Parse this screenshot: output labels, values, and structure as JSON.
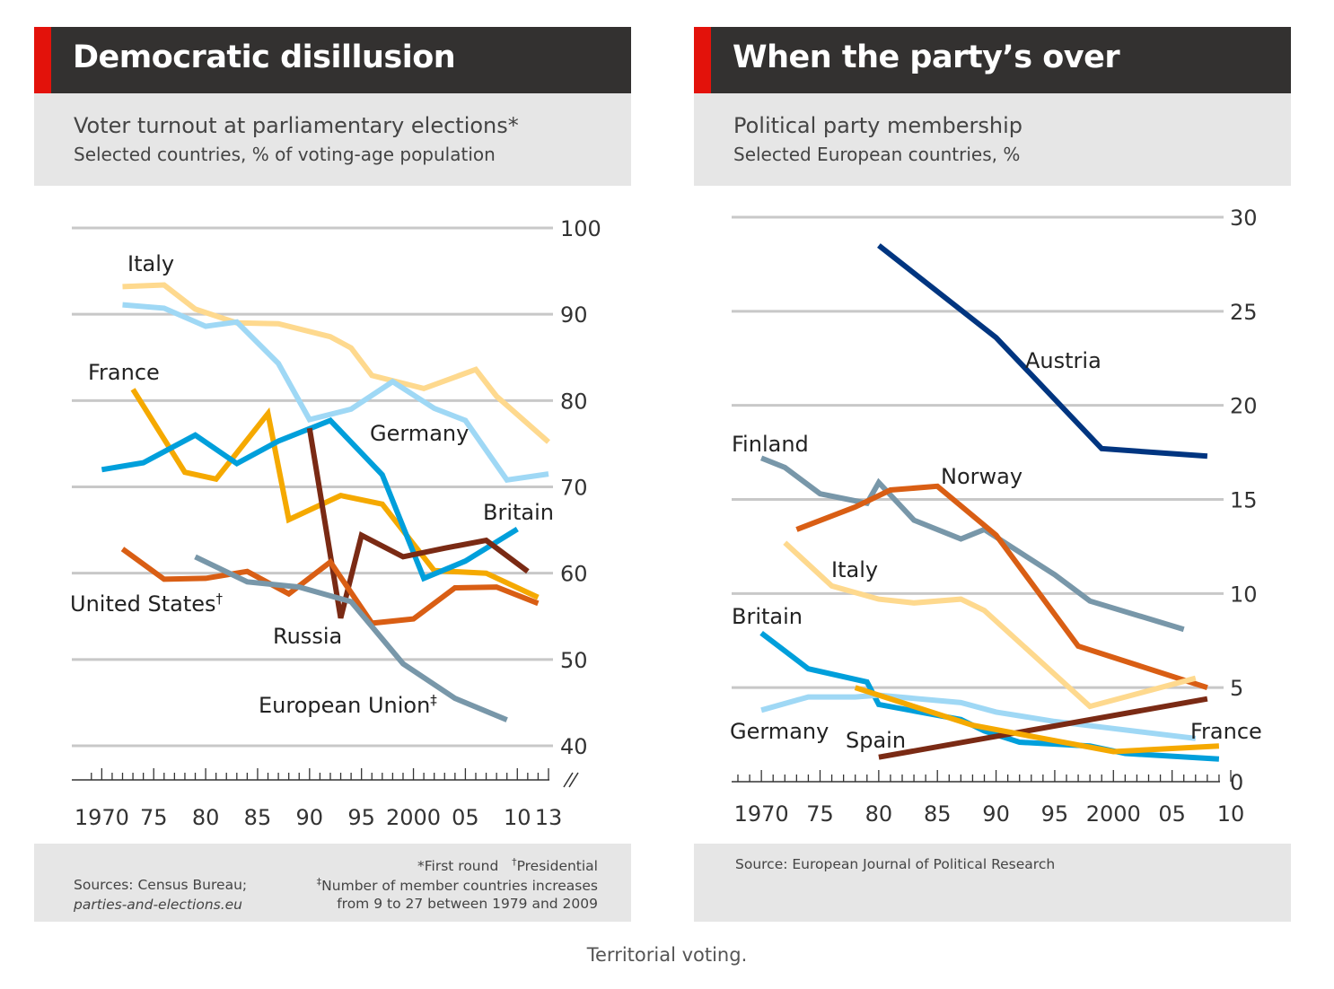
{
  "caption": "Territorial voting.",
  "charts": {
    "left": {
      "title": "Democratic disillusion",
      "subtitle": "Voter turnout at parliamentary elections*",
      "subtitle2": "Selected countries, % of voting-age population",
      "footer": {
        "sources_prefix": "Sources: Census Bureau;",
        "sources_link": "parties-and-elections.eu",
        "note1": "*First round",
        "note2_mark": "†",
        "note2": "Presidential",
        "note3_mark": "‡",
        "note3": "Number of member countries increases",
        "note4": "from 9 to 27 between 1979 and 2009"
      }
    },
    "right": {
      "title": "When the party’s over",
      "subtitle": "Political party membership",
      "subtitle2": "Selected European countries, %",
      "footer": {
        "sources": "Source: European Journal of Political Research"
      }
    }
  },
  "chart_data": [
    {
      "type": "line",
      "title": "Democratic disillusion",
      "subtitle": "Voter turnout at parliamentary elections* — Selected countries, % of voting-age population",
      "ylim": [
        40,
        100
      ],
      "yticks": [
        40,
        50,
        60,
        70,
        80,
        90,
        100
      ],
      "y_axis_side": "right",
      "y_axis_break": true,
      "xlim": [
        1968.5,
        2013
      ],
      "xtick_values": [
        1970,
        1975,
        1980,
        1985,
        1990,
        1995,
        2000,
        2005,
        2010,
        2013
      ],
      "xtick_labels": [
        "1970",
        "75",
        "80",
        "85",
        "90",
        "95",
        "2000",
        "05",
        "10",
        "13"
      ],
      "grid": true,
      "legend": "direct labels",
      "series": [
        {
          "name": "Italy",
          "color": "#fed98e",
          "x": [
            1972,
            1976,
            1979,
            1983,
            1987,
            1992,
            1994,
            1996,
            2001,
            2006,
            2008,
            2013
          ],
          "y": [
            93.2,
            93.4,
            90.6,
            89.0,
            88.9,
            87.4,
            86.1,
            82.9,
            81.4,
            83.6,
            80.5,
            75.2
          ]
        },
        {
          "name": "Germany",
          "color": "#9fd8f5",
          "x": [
            1972,
            1976,
            1980,
            1983,
            1987,
            1990,
            1994,
            1998,
            2002,
            2005,
            2009,
            2013
          ],
          "y": [
            91.1,
            90.7,
            88.6,
            89.1,
            84.3,
            77.8,
            79.0,
            82.2,
            79.1,
            77.7,
            70.8,
            71.5
          ]
        },
        {
          "name": "France",
          "color": "#f5a900",
          "x": [
            1973,
            1978,
            1981,
            1986,
            1988,
            1993,
            1997,
            2002,
            2007,
            2012
          ],
          "y": [
            81.3,
            71.7,
            70.9,
            78.5,
            66.2,
            69.0,
            68.0,
            60.3,
            60.0,
            57.2
          ]
        },
        {
          "name": "Britain",
          "color": "#009fdb",
          "x": [
            1970,
            1974,
            1979,
            1983,
            1987,
            1992,
            1997,
            2001,
            2005,
            2010
          ],
          "y": [
            72.0,
            72.8,
            76.0,
            72.7,
            75.3,
            77.7,
            71.4,
            59.4,
            61.4,
            65.1
          ]
        },
        {
          "name": "Russia",
          "color": "#7a2a14",
          "x": [
            1990,
            1993,
            1995,
            1999,
            2003,
            2007,
            2011
          ],
          "y": [
            76.8,
            54.8,
            64.4,
            61.9,
            62.9,
            63.8,
            60.2
          ]
        },
        {
          "name": "United States†",
          "color": "#d95e14",
          "x": [
            1972,
            1976,
            1980,
            1984,
            1988,
            1992,
            1996,
            2000,
            2004,
            2008,
            2012
          ],
          "y": [
            62.8,
            59.3,
            59.4,
            60.2,
            57.6,
            61.3,
            54.2,
            54.7,
            58.3,
            58.4,
            56.5
          ]
        },
        {
          "name": "European Union‡",
          "color": "#7897a9",
          "x": [
            1979,
            1984,
            1989,
            1994,
            1999,
            2004,
            2009
          ],
          "y": [
            61.9,
            59.0,
            58.4,
            56.7,
            49.5,
            45.5,
            43.0
          ]
        }
      ]
    },
    {
      "type": "line",
      "title": "When the party’s over",
      "subtitle": "Political party membership — Selected European countries, %",
      "ylim": [
        0,
        30
      ],
      "yticks": [
        0,
        5,
        10,
        15,
        20,
        25,
        30
      ],
      "y_axis_side": "right",
      "xlim": [
        1968,
        2010
      ],
      "xtick_values": [
        1970,
        1975,
        1980,
        1985,
        1990,
        1995,
        2000,
        2005,
        2010
      ],
      "xtick_labels": [
        "1970",
        "75",
        "80",
        "85",
        "90",
        "95",
        "2000",
        "05",
        "10"
      ],
      "grid": true,
      "legend": "direct labels",
      "series": [
        {
          "name": "Austria",
          "color": "#003580",
          "x": [
            1980,
            1990,
            1999,
            2008
          ],
          "y": [
            28.5,
            23.6,
            17.7,
            17.3
          ]
        },
        {
          "name": "Finland",
          "color": "#7897a9",
          "x": [
            1970,
            1972,
            1975,
            1979,
            1980,
            1983,
            1987,
            1989,
            1995,
            1998,
            2006
          ],
          "y": [
            17.2,
            16.7,
            15.3,
            14.8,
            15.9,
            13.9,
            12.9,
            13.4,
            11.0,
            9.6,
            8.1
          ]
        },
        {
          "name": "Norway",
          "color": "#d95e14",
          "x": [
            1973,
            1978,
            1981,
            1985,
            1990,
            1997,
            2008
          ],
          "y": [
            13.4,
            14.6,
            15.5,
            15.7,
            13.1,
            7.2,
            5.0
          ]
        },
        {
          "name": "Italy",
          "color": "#fed98e",
          "x": [
            1972,
            1976,
            1980,
            1983,
            1987,
            1989,
            1998,
            2007
          ],
          "y": [
            12.7,
            10.4,
            9.7,
            9.5,
            9.7,
            9.1,
            4.0,
            5.5
          ]
        },
        {
          "name": "Britain",
          "color": "#009fdb",
          "x": [
            1970,
            1974,
            1979,
            1980,
            1987,
            1989,
            1992,
            1998,
            2001,
            2009
          ],
          "y": [
            7.9,
            6.0,
            5.3,
            4.1,
            3.3,
            2.7,
            2.1,
            1.9,
            1.5,
            1.2
          ]
        },
        {
          "name": "Germany",
          "color": "#9fd8f5",
          "x": [
            1970,
            1974,
            1978,
            1980,
            1987,
            1990,
            1995,
            1999,
            2007
          ],
          "y": [
            3.8,
            4.5,
            4.5,
            4.6,
            4.2,
            3.7,
            3.2,
            2.9,
            2.3
          ]
        },
        {
          "name": "Spain",
          "color": "#7a2a14",
          "x": [
            1980,
            2008
          ],
          "y": [
            1.3,
            4.4
          ]
        },
        {
          "name": "France",
          "color": "#f5a900",
          "x": [
            1978,
            1988,
            2000,
            2009
          ],
          "y": [
            5.0,
            3.0,
            1.6,
            1.9
          ]
        }
      ]
    }
  ]
}
